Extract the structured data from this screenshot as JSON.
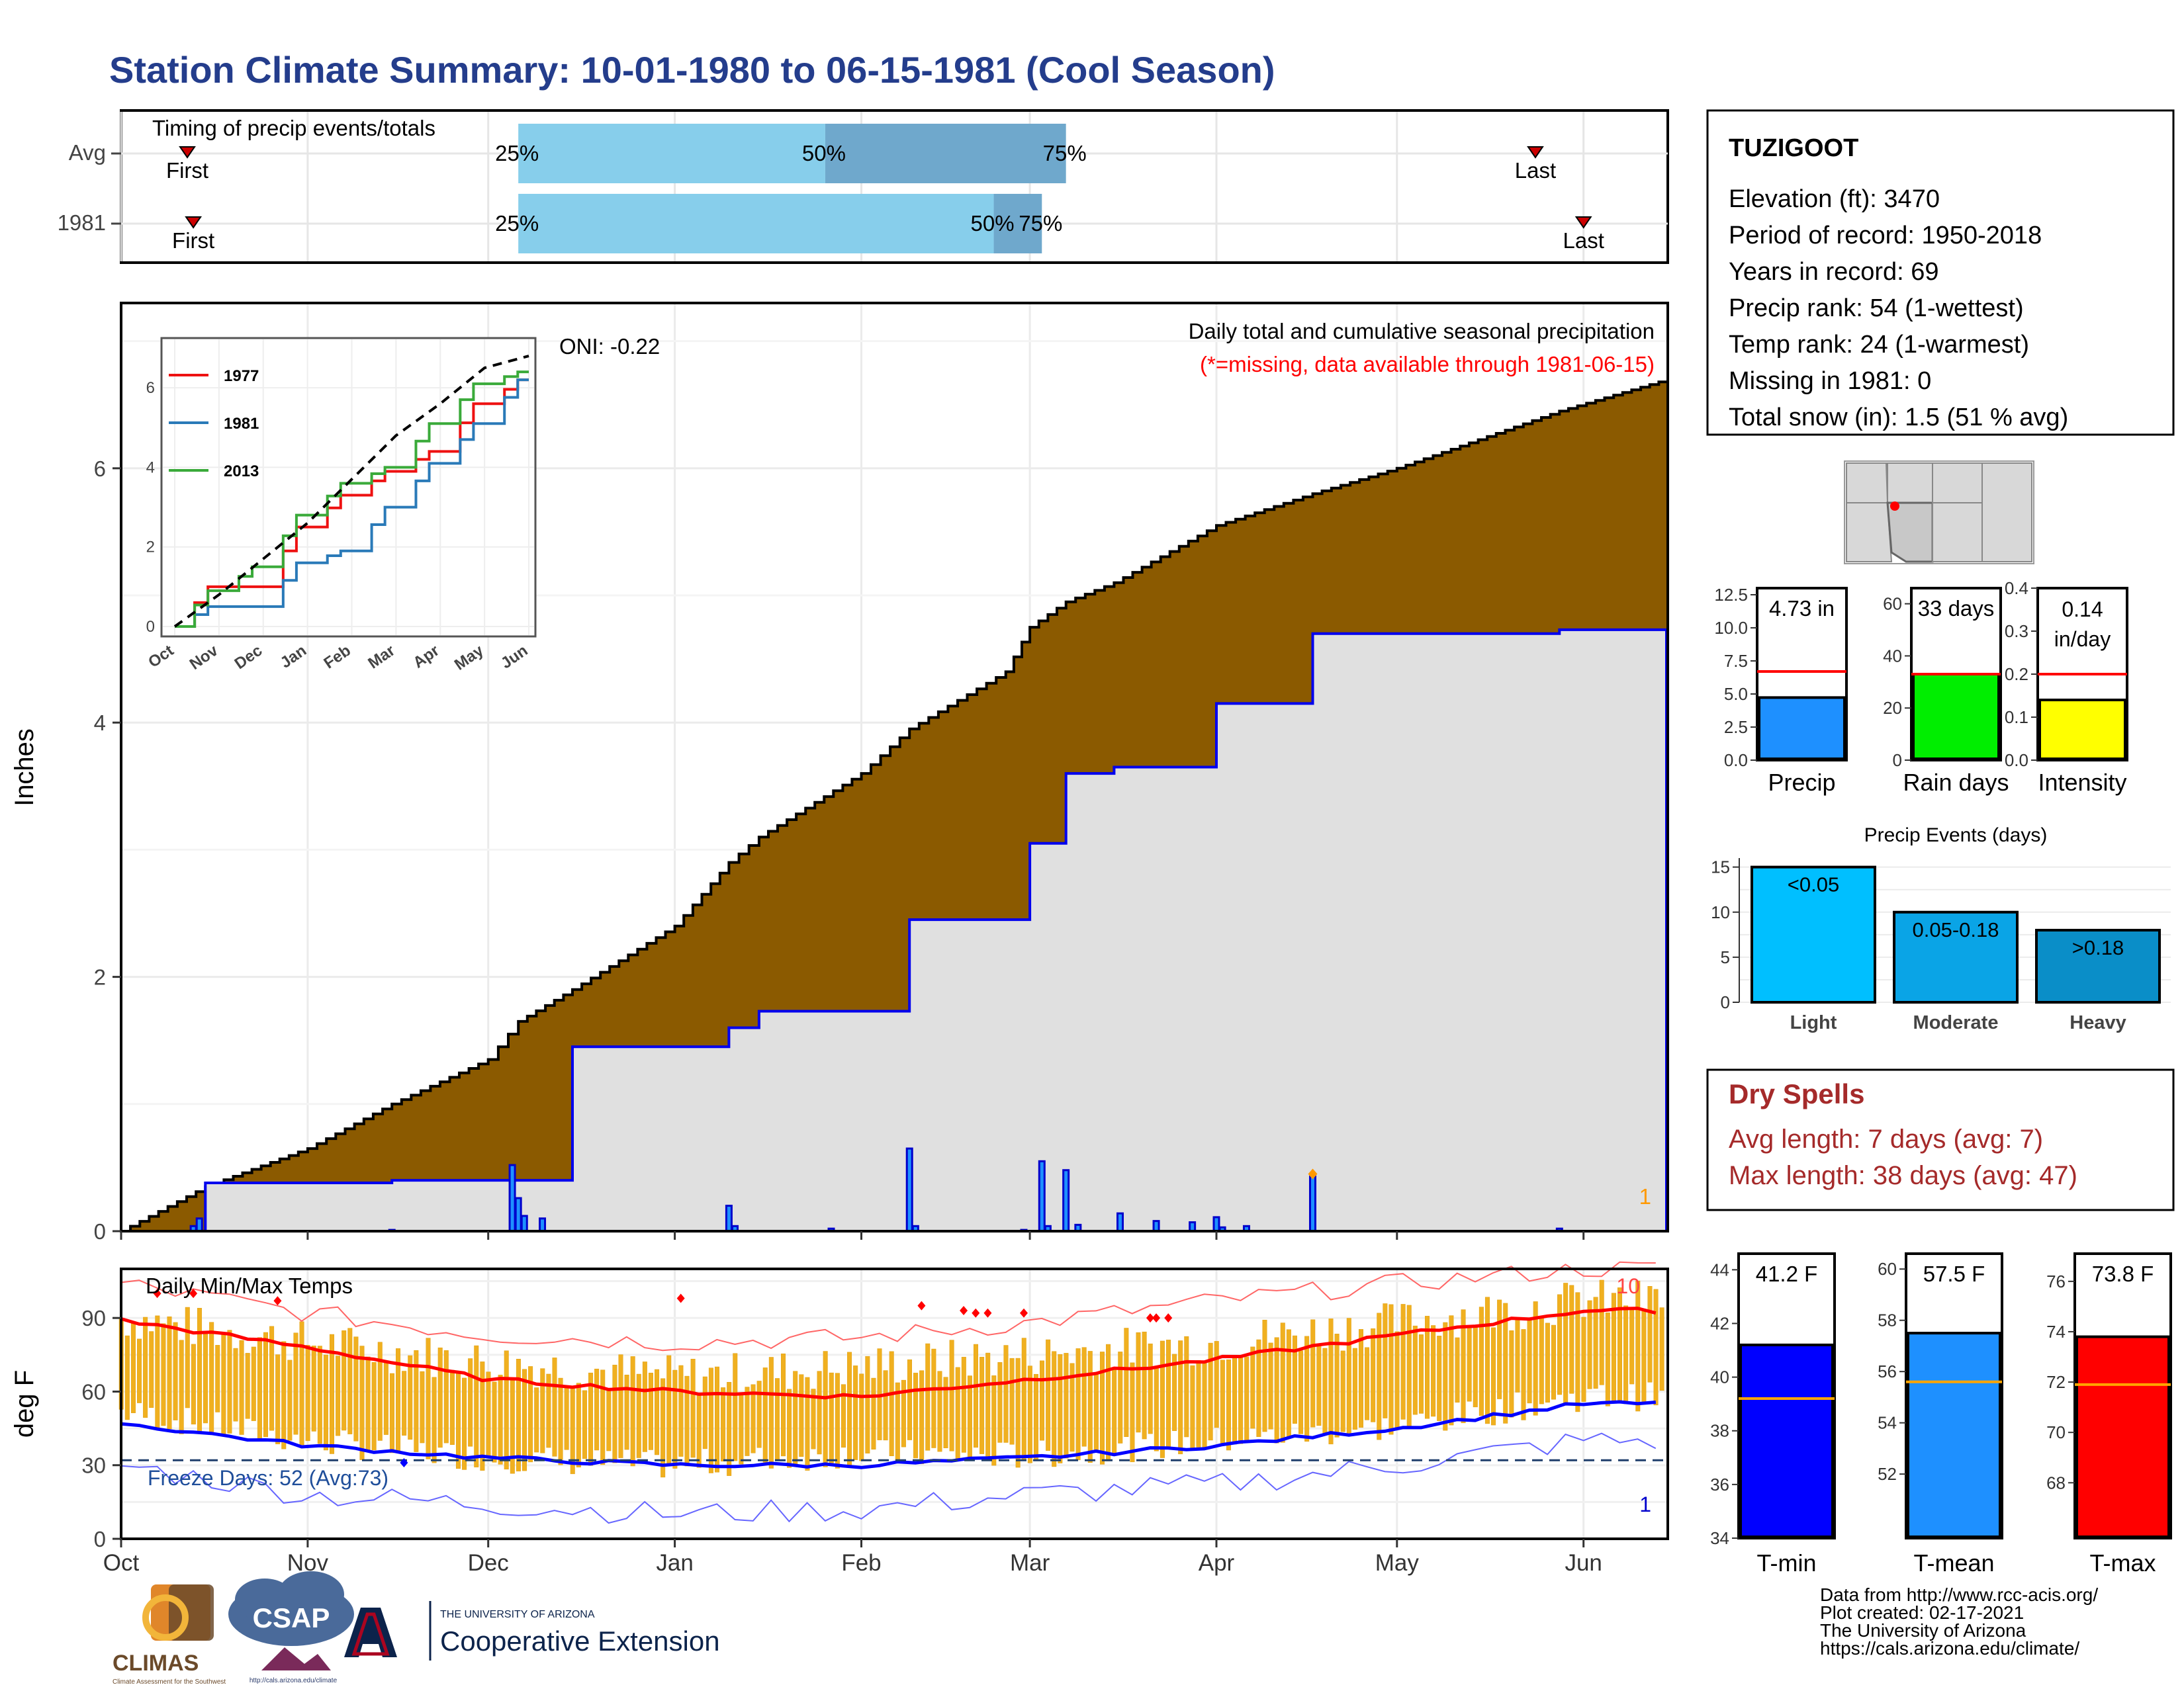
{
  "title": "Station Climate Summary: 10-01-1980 to 06-15-1981 (Cool Season)",
  "colors": {
    "title": "#243d8c",
    "brown": "#8b5a00",
    "gray_fill": "#e0e0e0",
    "blue_line": "#0000ee",
    "light_blue": "#87ceeb",
    "mid_blue": "#6fa8cc",
    "tmax_red": "#ff0000",
    "tmin_blue": "#0000ff",
    "tmean_blue": "#1e90ff",
    "temp_bar": "#f0b020",
    "dry_spell_red": "#a52a2a",
    "missing_red": "#ff0000"
  },
  "station": {
    "name": "TUZIGOOT",
    "lines": [
      "Elevation (ft): 3470",
      "Period of record: 1950-2018",
      "Years in record: 69",
      "Precip rank: 54 (1-wettest)",
      "Temp rank: 24 (1-warmest)",
      "Missing in 1981: 0",
      "Total snow (in): 1.5 (51 % avg)"
    ]
  },
  "timing": {
    "title": "Timing of precip events/totals",
    "rows": [
      {
        "label": "Avg",
        "first_label": "First",
        "last_label": "Last",
        "first": "Oct 12",
        "last": "May 24",
        "p25": "Dec 6",
        "p50": "Jan 26",
        "p75": "Mar 7",
        "p25_label": "25%",
        "p50_label": "50%",
        "p75_label": "75%"
      },
      {
        "label": "1981",
        "first_label": "First",
        "last_label": "Last",
        "first": "Oct 13",
        "last": "Jun 1",
        "p25": "Dec 6",
        "p50": "Feb 23",
        "p75": "Mar 3",
        "p25_label": "25%",
        "p50_label": "50%",
        "p75_label": "75%"
      }
    ]
  },
  "precip_panel": {
    "caption": "Daily total and cumulative seasonal precipitation",
    "missing_note": "(*=missing, data available through 1981-06-15)",
    "oni": "ONI: -0.22",
    "ylabel": "Inches",
    "corner_count": "1",
    "y_ticks": [
      "0",
      "2",
      "4",
      "6"
    ]
  },
  "inset": {
    "y_ticks": [
      "0",
      "2",
      "4",
      "6"
    ],
    "x_ticks": [
      "Oct",
      "Nov",
      "Dec",
      "Jan",
      "Feb",
      "Mar",
      "Apr",
      "May",
      "Jun"
    ],
    "legend": [
      {
        "name": "1977",
        "color": "#ee1111"
      },
      {
        "name": "1981",
        "color": "#2a7ab8"
      },
      {
        "name": "2013",
        "color": "#3aaa3a"
      }
    ]
  },
  "temp_panel": {
    "caption": "Daily Min/Max Temps",
    "ylabel": "deg F",
    "freeze_text": "Freeze Days: 52 (Avg:73)",
    "max_count": "10",
    "min_count": "1",
    "y_ticks": [
      "0",
      "30",
      "60",
      "90"
    ],
    "x_ticks": [
      "Oct",
      "Nov",
      "Dec",
      "Jan",
      "Feb",
      "Mar",
      "Apr",
      "May",
      "Jun"
    ]
  },
  "bars_precip": [
    {
      "label": "Precip",
      "value_text": "4.73 in",
      "value": 4.73,
      "avg": 6.7,
      "ymax": 13,
      "ticks": [
        "0.0",
        "2.5",
        "5.0",
        "7.5",
        "10.0",
        "12.5"
      ],
      "tickvals": [
        0,
        2.5,
        5,
        7.5,
        10,
        12.5
      ],
      "color": "#1e90ff"
    },
    {
      "label": "Rain days",
      "value_text": "33 days",
      "value": 33,
      "avg": 33,
      "ymax": 66,
      "ticks": [
        "0",
        "20",
        "40",
        "60"
      ],
      "tickvals": [
        0,
        20,
        40,
        60
      ],
      "color": "#00ee00"
    },
    {
      "label": "Intensity",
      "value_text": "0.14",
      "value_text2": "in/day",
      "value": 0.14,
      "avg": 0.2,
      "ymax": 0.4,
      "ticks": [
        "0.0",
        "0.1",
        "0.2",
        "0.3",
        "0.4"
      ],
      "tickvals": [
        0,
        0.1,
        0.2,
        0.3,
        0.4
      ],
      "color": "#ffff00"
    }
  ],
  "precip_events": {
    "title": "Precip Events (days)",
    "categories": [
      "Light",
      "Moderate",
      "Heavy"
    ],
    "bar_labels": [
      "<0.05",
      "0.05-0.18",
      ">0.18"
    ],
    "values": [
      15,
      10,
      8
    ],
    "colors": [
      "#00bfff",
      "#0aa4e6",
      "#0a8ec8"
    ],
    "y_ticks": [
      "0",
      "5",
      "10",
      "15"
    ]
  },
  "dry_spells": {
    "title": "Dry Spells",
    "avg_line": "Avg length: 7 days (avg: 7)",
    "max_line": "Max length: 38 days (avg: 47)"
  },
  "bars_temp": [
    {
      "label": "T-min",
      "value_text": "41.2 F",
      "value": 41.2,
      "avg": 39.2,
      "ymin": 34,
      "ymax": 44.6,
      "ticks": [
        "34",
        "36",
        "38",
        "40",
        "42",
        "44"
      ],
      "tickvals": [
        34,
        36,
        38,
        40,
        42,
        44
      ],
      "color": "#0000ff"
    },
    {
      "label": "T-mean",
      "value_text": "57.5 F",
      "value": 57.5,
      "avg": 55.6,
      "ymin": 49.5,
      "ymax": 60.6,
      "ticks": [
        "52",
        "54",
        "56",
        "58",
        "60"
      ],
      "tickvals": [
        52,
        54,
        56,
        58,
        60
      ],
      "color": "#1e90ff"
    },
    {
      "label": "T-max",
      "value_text": "73.8 F",
      "value": 73.8,
      "avg": 71.9,
      "ymin": 65.8,
      "ymax": 77.1,
      "ticks": [
        "68",
        "70",
        "72",
        "74",
        "76"
      ],
      "tickvals": [
        68,
        70,
        72,
        74,
        76
      ],
      "color": "#ff0000"
    }
  ],
  "footer": {
    "lines": [
      "Data from http://www.rcc-acis.org/",
      "Plot created: 02-17-2021",
      "The University of Arizona",
      "https://cals.arizona.edu/climate/"
    ],
    "climas": "CLIMAS",
    "climas_sub": "Climate Assessment for the Southwest",
    "csap": "CSAP",
    "csap_url": "http://cals.arizona.edu/climate",
    "ua_top": "THE UNIVERSITY OF ARIZONA",
    "ua_bottom": "Cooperative Extension",
    "ua_letter": "A"
  },
  "chart_data": [
    {
      "type": "area",
      "title": "Daily total and cumulative seasonal precipitation",
      "ylabel": "Inches",
      "ylim": [
        0,
        7.3
      ],
      "x": [
        "1980-10-01",
        "1980-10-15",
        "1980-11-01",
        "1980-11-15",
        "1980-12-01",
        "1980-12-06",
        "1980-12-15",
        "1981-01-01",
        "1981-01-10",
        "1981-01-15",
        "1981-02-01",
        "1981-02-09",
        "1981-02-25",
        "1981-03-01",
        "1981-03-07",
        "1981-03-15",
        "1981-04-01",
        "1981-04-17",
        "1981-05-01",
        "1981-05-28",
        "1981-06-15"
      ],
      "series": [
        {
          "name": "Average cumulative",
          "values": [
            0.0,
            0.35,
            0.65,
            1.0,
            1.35,
            1.65,
            1.9,
            2.4,
            2.9,
            3.1,
            3.6,
            3.95,
            4.4,
            4.75,
            4.95,
            5.1,
            5.55,
            5.8,
            6.0,
            6.45,
            6.7
          ]
        },
        {
          "name": "1981 cumulative",
          "values": [
            0.0,
            0.38,
            0.38,
            0.4,
            0.4,
            0.4,
            1.45,
            1.45,
            1.6,
            1.73,
            1.73,
            2.45,
            2.45,
            3.05,
            3.6,
            3.65,
            4.15,
            4.7,
            4.7,
            4.73,
            4.73
          ]
        }
      ],
      "daily_precip": [
        {
          "date": "1980-10-13",
          "value": 0.04
        },
        {
          "date": "1980-10-14",
          "value": 0.1
        },
        {
          "date": "1980-11-15",
          "value": 0.01
        },
        {
          "date": "1980-12-05",
          "value": 0.52
        },
        {
          "date": "1980-12-06",
          "value": 0.26
        },
        {
          "date": "1980-12-07",
          "value": 0.12
        },
        {
          "date": "1980-12-10",
          "value": 0.1
        },
        {
          "date": "1981-01-10",
          "value": 0.2
        },
        {
          "date": "1981-01-11",
          "value": 0.04
        },
        {
          "date": "1981-01-27",
          "value": 0.02
        },
        {
          "date": "1981-02-09",
          "value": 0.65
        },
        {
          "date": "1981-02-10",
          "value": 0.04
        },
        {
          "date": "1981-02-28",
          "value": 0.01
        },
        {
          "date": "1981-03-03",
          "value": 0.55
        },
        {
          "date": "1981-03-04",
          "value": 0.04
        },
        {
          "date": "1981-03-07",
          "value": 0.48
        },
        {
          "date": "1981-03-09",
          "value": 0.05
        },
        {
          "date": "1981-03-16",
          "value": 0.14
        },
        {
          "date": "1981-03-22",
          "value": 0.08
        },
        {
          "date": "1981-03-28",
          "value": 0.07
        },
        {
          "date": "1981-04-01",
          "value": 0.11
        },
        {
          "date": "1981-04-02",
          "value": 0.03
        },
        {
          "date": "1981-04-06",
          "value": 0.04
        },
        {
          "date": "1981-04-17",
          "value": 0.43
        },
        {
          "date": "1981-05-28",
          "value": 0.02
        }
      ]
    },
    {
      "type": "line",
      "title": "",
      "ylim": [
        0,
        7
      ],
      "x": [
        "Oct",
        "Nov",
        "Dec",
        "Jan",
        "Feb",
        "Mar",
        "Apr",
        "May",
        "Jun"
      ],
      "series": [
        {
          "name": "1977",
          "values": [
            0.0,
            1.0,
            1.0,
            2.5,
            3.3,
            3.9,
            4.4,
            5.6,
            6.2
          ]
        },
        {
          "name": "1981",
          "values": [
            0.0,
            0.5,
            0.5,
            1.6,
            1.9,
            3.0,
            4.1,
            5.1,
            6.2
          ]
        },
        {
          "name": "2013",
          "values": [
            0.0,
            0.9,
            1.5,
            2.8,
            3.6,
            4.0,
            5.1,
            6.1,
            6.4
          ]
        }
      ],
      "average_series": [
        0.0,
        0.8,
        1.7,
        2.6,
        3.7,
        4.8,
        5.6,
        6.5,
        6.8
      ]
    },
    {
      "type": "line",
      "title": "Daily Min/Max Temps",
      "ylabel": "deg F",
      "ylim": [
        0,
        110
      ],
      "x": [
        "Oct",
        "Nov",
        "Dec",
        "Jan",
        "Feb",
        "Mar",
        "Apr",
        "May",
        "Jun"
      ],
      "series": [
        {
          "name": "Avg max",
          "values": [
            89,
            78,
            65,
            60,
            58,
            65,
            73,
            83,
            93
          ]
        },
        {
          "name": "Avg min",
          "values": [
            47,
            38,
            33,
            30,
            30,
            33,
            38,
            45,
            55
          ]
        },
        {
          "name": "Record high",
          "values": [
            104,
            92,
            83,
            80,
            82,
            88,
            97,
            104,
            110
          ]
        },
        {
          "name": "Record low",
          "values": [
            30,
            18,
            14,
            10,
            12,
            18,
            22,
            30,
            40
          ]
        },
        {
          "name": "1981 max",
          "values": [
            90,
            80,
            72,
            66,
            70,
            75,
            80,
            88,
            97
          ]
        },
        {
          "name": "1981 min",
          "values": [
            52,
            40,
            33,
            30,
            35,
            34,
            40,
            46,
            58
          ]
        }
      ],
      "freeze_line": 32
    },
    {
      "type": "bar",
      "title": "Precip Events (days)",
      "categories": [
        "Light",
        "Moderate",
        "Heavy"
      ],
      "values": [
        15,
        10,
        8
      ],
      "ylim": [
        0,
        16
      ]
    }
  ]
}
